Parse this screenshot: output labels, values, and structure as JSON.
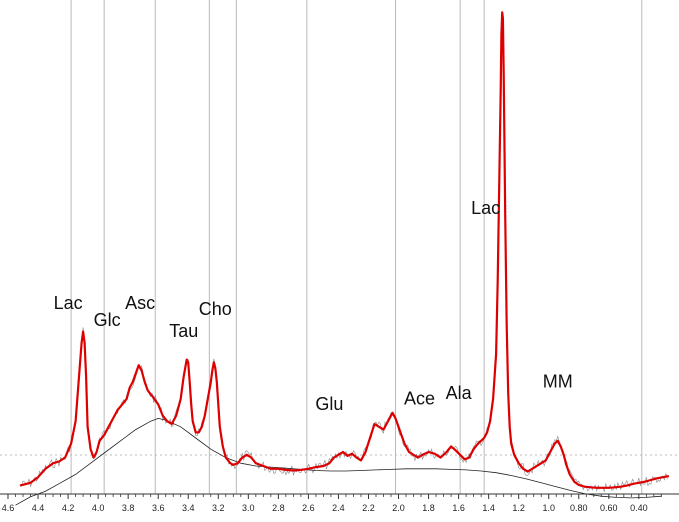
{
  "chart_data": {
    "type": "line",
    "title": "",
    "xlabel": "",
    "ylabel": "",
    "x_unit": "ppm",
    "x_reversed": true,
    "xlim": [
      4.6,
      0.2
    ],
    "ylim": [
      0,
      1.0
    ],
    "grid": {
      "vertical": true,
      "horizontal_dashed": true
    },
    "x_ticks": [
      "4.6",
      "4.4",
      "4.2",
      "4.0",
      "3.8",
      "3.6",
      "3.4",
      "3.2",
      "3.0",
      "2.8",
      "2.6",
      "2.4",
      "2.2",
      "2.0",
      "1.8",
      "1.6",
      "1.4",
      "1.2",
      "1.0",
      "0.80",
      "0.60",
      "0.40"
    ],
    "tick_values": [
      4.6,
      4.4,
      4.2,
      4.0,
      3.8,
      3.6,
      3.4,
      3.2,
      3.0,
      2.8,
      2.6,
      2.4,
      2.2,
      2.0,
      1.8,
      1.6,
      1.4,
      1.2,
      1.0,
      0.8,
      0.6,
      0.4
    ],
    "gridlines_ppm": [
      4.18,
      3.96,
      3.62,
      3.26,
      3.08,
      2.61,
      2.02,
      1.59,
      1.43,
      0.38
    ],
    "peak_labels": [
      {
        "text": "Lac",
        "x": 4.2,
        "y": 0.33
      },
      {
        "text": "Glc",
        "x": 3.94,
        "y": 0.3
      },
      {
        "text": "Asc",
        "x": 3.72,
        "y": 0.33
      },
      {
        "text": "Tau",
        "x": 3.43,
        "y": 0.28
      },
      {
        "text": "Cho",
        "x": 3.22,
        "y": 0.32
      },
      {
        "text": "Glu",
        "x": 2.46,
        "y": 0.15
      },
      {
        "text": "Ace",
        "x": 1.86,
        "y": 0.16
      },
      {
        "text": "Ala",
        "x": 1.6,
        "y": 0.17
      },
      {
        "text": "Lac",
        "x": 1.42,
        "y": 0.5
      },
      {
        "text": "MM",
        "x": 0.94,
        "y": 0.19
      }
    ],
    "series": [
      {
        "role": "fit",
        "color": "#dd0000",
        "x": [
          4.52,
          4.45,
          4.4,
          4.35,
          4.3,
          4.26,
          4.22,
          4.18,
          4.15,
          4.13,
          4.11,
          4.1,
          4.09,
          4.08,
          4.07,
          4.05,
          4.03,
          4.01,
          3.99,
          3.96,
          3.93,
          3.9,
          3.87,
          3.84,
          3.81,
          3.79,
          3.77,
          3.75,
          3.73,
          3.71,
          3.69,
          3.67,
          3.64,
          3.6,
          3.57,
          3.54,
          3.51,
          3.48,
          3.45,
          3.43,
          3.41,
          3.4,
          3.39,
          3.38,
          3.37,
          3.35,
          3.33,
          3.31,
          3.29,
          3.27,
          3.25,
          3.24,
          3.23,
          3.22,
          3.21,
          3.2,
          3.19,
          3.17,
          3.15,
          3.12,
          3.1,
          3.07,
          3.04,
          3.01,
          2.98,
          2.95,
          2.9,
          2.85,
          2.8,
          2.75,
          2.7,
          2.65,
          2.6,
          2.55,
          2.5,
          2.46,
          2.43,
          2.4,
          2.37,
          2.34,
          2.31,
          2.28,
          2.25,
          2.22,
          2.19,
          2.16,
          2.13,
          2.1,
          2.07,
          2.04,
          2.02,
          2.0,
          1.98,
          1.96,
          1.93,
          1.9,
          1.87,
          1.84,
          1.8,
          1.76,
          1.72,
          1.68,
          1.65,
          1.62,
          1.59,
          1.56,
          1.53,
          1.5,
          1.47,
          1.45,
          1.43,
          1.41,
          1.39,
          1.37,
          1.35,
          1.34,
          1.33,
          1.32,
          1.315,
          1.31,
          1.305,
          1.3,
          1.29,
          1.28,
          1.27,
          1.26,
          1.25,
          1.23,
          1.2,
          1.17,
          1.14,
          1.11,
          1.08,
          1.05,
          1.02,
          0.99,
          0.96,
          0.94,
          0.92,
          0.9,
          0.88,
          0.86,
          0.83,
          0.8,
          0.76,
          0.72,
          0.68,
          0.64,
          0.6,
          0.56,
          0.52,
          0.48,
          0.44,
          0.4,
          0.36,
          0.32,
          0.28,
          0.24,
          0.2
        ],
        "y": [
          0.015,
          0.02,
          0.03,
          0.045,
          0.055,
          0.058,
          0.065,
          0.09,
          0.13,
          0.2,
          0.27,
          0.29,
          0.27,
          0.21,
          0.12,
          0.08,
          0.065,
          0.075,
          0.095,
          0.105,
          0.12,
          0.135,
          0.15,
          0.16,
          0.17,
          0.19,
          0.2,
          0.215,
          0.23,
          0.22,
          0.2,
          0.185,
          0.175,
          0.16,
          0.14,
          0.13,
          0.125,
          0.14,
          0.17,
          0.21,
          0.24,
          0.235,
          0.2,
          0.16,
          0.13,
          0.11,
          0.11,
          0.12,
          0.14,
          0.17,
          0.2,
          0.22,
          0.235,
          0.225,
          0.2,
          0.16,
          0.12,
          0.085,
          0.065,
          0.055,
          0.052,
          0.055,
          0.065,
          0.07,
          0.065,
          0.055,
          0.05,
          0.045,
          0.045,
          0.043,
          0.042,
          0.043,
          0.045,
          0.048,
          0.05,
          0.055,
          0.065,
          0.07,
          0.075,
          0.068,
          0.072,
          0.065,
          0.06,
          0.075,
          0.1,
          0.125,
          0.12,
          0.115,
          0.13,
          0.145,
          0.135,
          0.12,
          0.105,
          0.09,
          0.075,
          0.07,
          0.065,
          0.07,
          0.075,
          0.072,
          0.065,
          0.075,
          0.085,
          0.078,
          0.07,
          0.062,
          0.065,
          0.08,
          0.09,
          0.095,
          0.1,
          0.11,
          0.13,
          0.17,
          0.25,
          0.38,
          0.55,
          0.72,
          0.82,
          0.86,
          0.85,
          0.75,
          0.5,
          0.3,
          0.18,
          0.12,
          0.09,
          0.07,
          0.055,
          0.045,
          0.04,
          0.045,
          0.05,
          0.055,
          0.06,
          0.075,
          0.09,
          0.095,
          0.085,
          0.07,
          0.05,
          0.035,
          0.022,
          0.016,
          0.013,
          0.012,
          0.011,
          0.011,
          0.011,
          0.012,
          0.013,
          0.015,
          0.018,
          0.02,
          0.022,
          0.025,
          0.028,
          0.03,
          0.032
        ]
      },
      {
        "role": "baseline",
        "color": "#222222",
        "x": [
          4.55,
          4.45,
          4.35,
          4.25,
          4.15,
          4.05,
          3.95,
          3.85,
          3.75,
          3.65,
          3.6,
          3.55,
          3.45,
          3.35,
          3.25,
          3.15,
          3.05,
          2.95,
          2.85,
          2.75,
          2.65,
          2.55,
          2.45,
          2.35,
          2.25,
          2.15,
          2.05,
          1.95,
          1.85,
          1.75,
          1.65,
          1.55,
          1.45,
          1.35,
          1.25,
          1.15,
          1.05,
          0.95,
          0.85,
          0.75,
          0.65,
          0.55,
          0.45,
          0.35,
          0.25
        ],
        "y": [
          -0.02,
          -0.005,
          0.005,
          0.02,
          0.035,
          0.055,
          0.075,
          0.095,
          0.115,
          0.13,
          0.135,
          0.132,
          0.12,
          0.1,
          0.08,
          0.065,
          0.055,
          0.05,
          0.048,
          0.046,
          0.044,
          0.042,
          0.041,
          0.041,
          0.042,
          0.043,
          0.044,
          0.045,
          0.045,
          0.045,
          0.044,
          0.043,
          0.041,
          0.038,
          0.033,
          0.027,
          0.02,
          0.013,
          0.006,
          0.0,
          -0.004,
          -0.006,
          -0.007,
          -0.006,
          -0.004
        ]
      }
    ]
  }
}
